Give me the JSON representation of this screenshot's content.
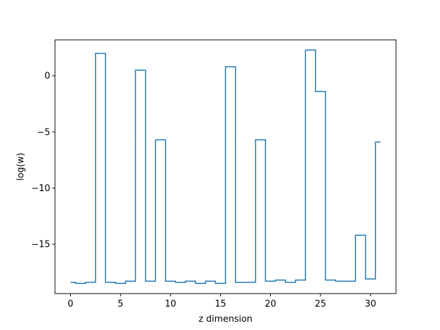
{
  "chart_data": {
    "type": "line",
    "drawstyle": "steps-mid",
    "title": "",
    "xlabel": "z dimension",
    "ylabel": "log(w)",
    "xlim": [
      -1.55,
      32.55
    ],
    "ylim": [
      -19.4,
      3.2
    ],
    "xticks": [
      0,
      5,
      10,
      15,
      20,
      25,
      30
    ],
    "yticks": [
      0,
      -5,
      -10,
      -15
    ],
    "grid": false,
    "line_color": "#1f77b4",
    "series": [
      {
        "x": [
          0,
          1,
          2,
          3,
          4,
          5,
          6,
          7,
          8,
          9,
          10,
          11,
          12,
          13,
          14,
          15,
          16,
          17,
          18,
          19,
          20,
          21,
          22,
          23,
          24,
          25,
          26,
          27,
          28,
          29,
          30,
          31
        ],
        "values": [
          -18.4,
          -18.5,
          -18.4,
          2.0,
          -18.4,
          -18.5,
          -18.3,
          0.5,
          -18.3,
          -5.7,
          -18.3,
          -18.4,
          -18.3,
          -18.5,
          -18.3,
          -18.5,
          0.8,
          -18.4,
          -18.4,
          -5.7,
          -18.3,
          -18.2,
          -18.4,
          -18.2,
          2.3,
          -1.4,
          -18.2,
          -18.3,
          -18.3,
          -14.2,
          -18.1,
          -5.9
        ]
      }
    ]
  }
}
